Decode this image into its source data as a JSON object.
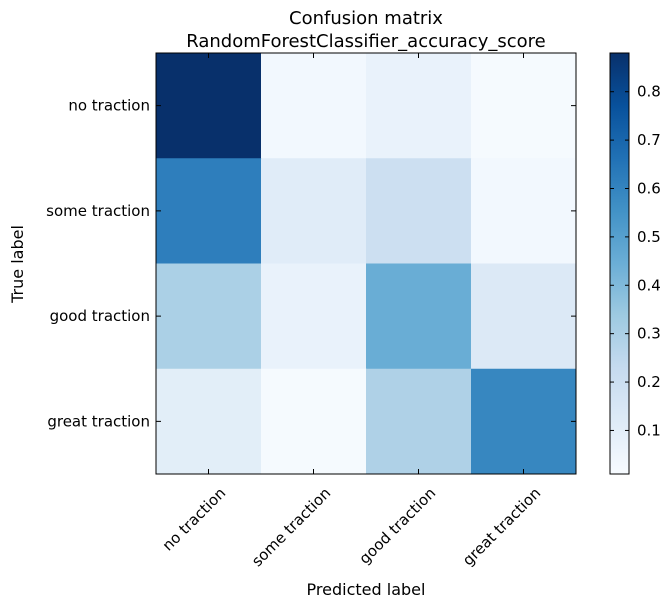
{
  "chart_data": {
    "type": "heatmap",
    "title": "Confusion matrix",
    "subtitle": "RandomForestClassifier_accuracy_score",
    "xlabel": "Predicted label",
    "ylabel": "True label",
    "x_categories": [
      "no traction",
      "some traction",
      "good traction",
      "great traction"
    ],
    "y_categories": [
      "no traction",
      "some traction",
      "good traction",
      "great traction"
    ],
    "values": [
      [
        0.88,
        0.03,
        0.07,
        0.02
      ],
      [
        0.62,
        0.11,
        0.2,
        0.03
      ],
      [
        0.3,
        0.07,
        0.45,
        0.13
      ],
      [
        0.1,
        0.02,
        0.29,
        0.59
      ]
    ],
    "colorbar": {
      "range": [
        0.01,
        0.88
      ],
      "ticks": [
        0.1,
        0.2,
        0.3,
        0.4,
        0.5,
        0.6,
        0.7,
        0.8
      ],
      "tick_labels": [
        "0.1",
        "0.2",
        "0.3",
        "0.4",
        "0.5",
        "0.6",
        "0.7",
        "0.8"
      ],
      "colormap": "Blues"
    },
    "grid": false
  }
}
